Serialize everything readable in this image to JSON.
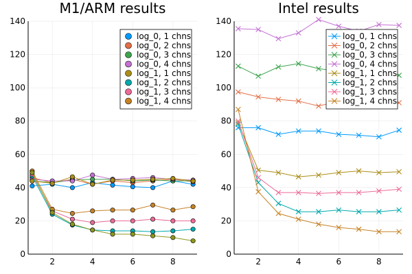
{
  "chart_data": [
    {
      "type": "scatter",
      "title": "M1/ARM results",
      "marker": "circle",
      "connected": true,
      "xlim": [
        0.8,
        9.2
      ],
      "ylim": [
        0,
        140
      ],
      "xticks": [
        2,
        4,
        6,
        8
      ],
      "yticks": [
        0,
        20,
        40,
        60,
        80,
        100,
        120,
        140
      ],
      "grid": true,
      "legend_position": "top-right",
      "x": [
        1,
        2,
        3,
        4,
        5,
        6,
        7,
        8,
        9
      ],
      "series": [
        {
          "name": "log_0, 1 chns",
          "color": "#009AFA",
          "values": [
            41,
            42,
            40,
            43,
            41.5,
            40.5,
            40,
            44,
            42
          ]
        },
        {
          "name": "log_0, 2 chns",
          "color": "#E36F47",
          "values": [
            46,
            43,
            45,
            42,
            44,
            43,
            44,
            45,
            43.5
          ]
        },
        {
          "name": "log_0, 3 chns",
          "color": "#3EA44E",
          "values": [
            44,
            43,
            44.5,
            45,
            45,
            44,
            44.5,
            44,
            44
          ]
        },
        {
          "name": "log_0, 4 chns",
          "color": "#C371D2",
          "values": [
            45,
            44,
            44,
            47.5,
            45,
            45.5,
            46,
            45,
            44.5
          ]
        },
        {
          "name": "log_1, 1 chns",
          "color": "#AC8E18",
          "values": [
            44,
            42.5,
            46.5,
            42,
            44.5,
            44.5,
            45,
            45.5,
            44
          ]
        },
        {
          "name": "log_1, 2 chns",
          "color": "#00A9AD",
          "values": [
            47,
            24,
            17.5,
            14.5,
            14,
            14,
            13.5,
            14,
            15
          ]
        },
        {
          "name": "log_1, 3 chns",
          "color": "#EC6A98",
          "values": [
            48,
            26,
            21,
            19,
            20,
            20,
            21,
            20,
            20
          ]
        },
        {
          "name": "log_1, 4 chns",
          "color": "#C68225",
          "values": [
            50,
            27,
            24.5,
            26,
            26.5,
            26.5,
            29.5,
            26.5,
            28.5
          ]
        },
        {
          "name": "",
          "color": "#8E971D",
          "values": [
            49,
            25,
            18,
            14.5,
            12,
            12,
            11,
            10,
            8
          ]
        }
      ]
    },
    {
      "type": "line",
      "title": "Intel results",
      "marker": "cross",
      "xlim": [
        0.8,
        9.2
      ],
      "ylim": [
        0,
        140
      ],
      "xticks": [
        2,
        4,
        6,
        8
      ],
      "yticks": [
        0,
        20,
        40,
        60,
        80,
        100,
        120,
        140
      ],
      "grid": true,
      "legend_position": "top-right",
      "x": [
        1,
        2,
        3,
        4,
        5,
        6,
        7,
        8,
        9
      ],
      "series": [
        {
          "name": "log_0, 1 chns",
          "color": "#009AFA",
          "values": [
            76,
            76,
            72,
            74,
            74,
            72,
            71.5,
            70.5,
            74.5
          ]
        },
        {
          "name": "log_0, 2 chns",
          "color": "#E36F47",
          "values": [
            97.5,
            94.5,
            93,
            92,
            89,
            92,
            90.5,
            92,
            91
          ]
        },
        {
          "name": "log_0, 3 chns",
          "color": "#3EA44E",
          "values": [
            113,
            107,
            112.5,
            114.5,
            111.5,
            110,
            111,
            113,
            107.5
          ]
        },
        {
          "name": "log_0, 4 chns",
          "color": "#C371D2",
          "values": [
            135.5,
            135,
            129.5,
            133,
            141,
            137,
            134,
            138,
            137.5
          ]
        },
        {
          "name": "log_1, 1 chns",
          "color": "#AC8E18",
          "values": [
            79,
            50.5,
            49,
            46.5,
            47.5,
            49,
            50,
            49,
            49.5
          ]
        },
        {
          "name": "log_1, 2 chns",
          "color": "#00A9AD",
          "values": [
            78,
            43,
            30.5,
            25.5,
            25.5,
            26.5,
            25.5,
            25.5,
            26.5
          ]
        },
        {
          "name": "log_1, 3 chns",
          "color": "#EC6A98",
          "values": [
            80,
            46,
            37,
            37,
            36.5,
            37,
            37,
            38,
            39
          ]
        },
        {
          "name": "log_1, 4 chns",
          "color": "#C68225",
          "values": [
            87,
            37.5,
            24.5,
            21,
            18,
            16,
            15,
            13.5,
            13.5
          ]
        }
      ]
    }
  ]
}
